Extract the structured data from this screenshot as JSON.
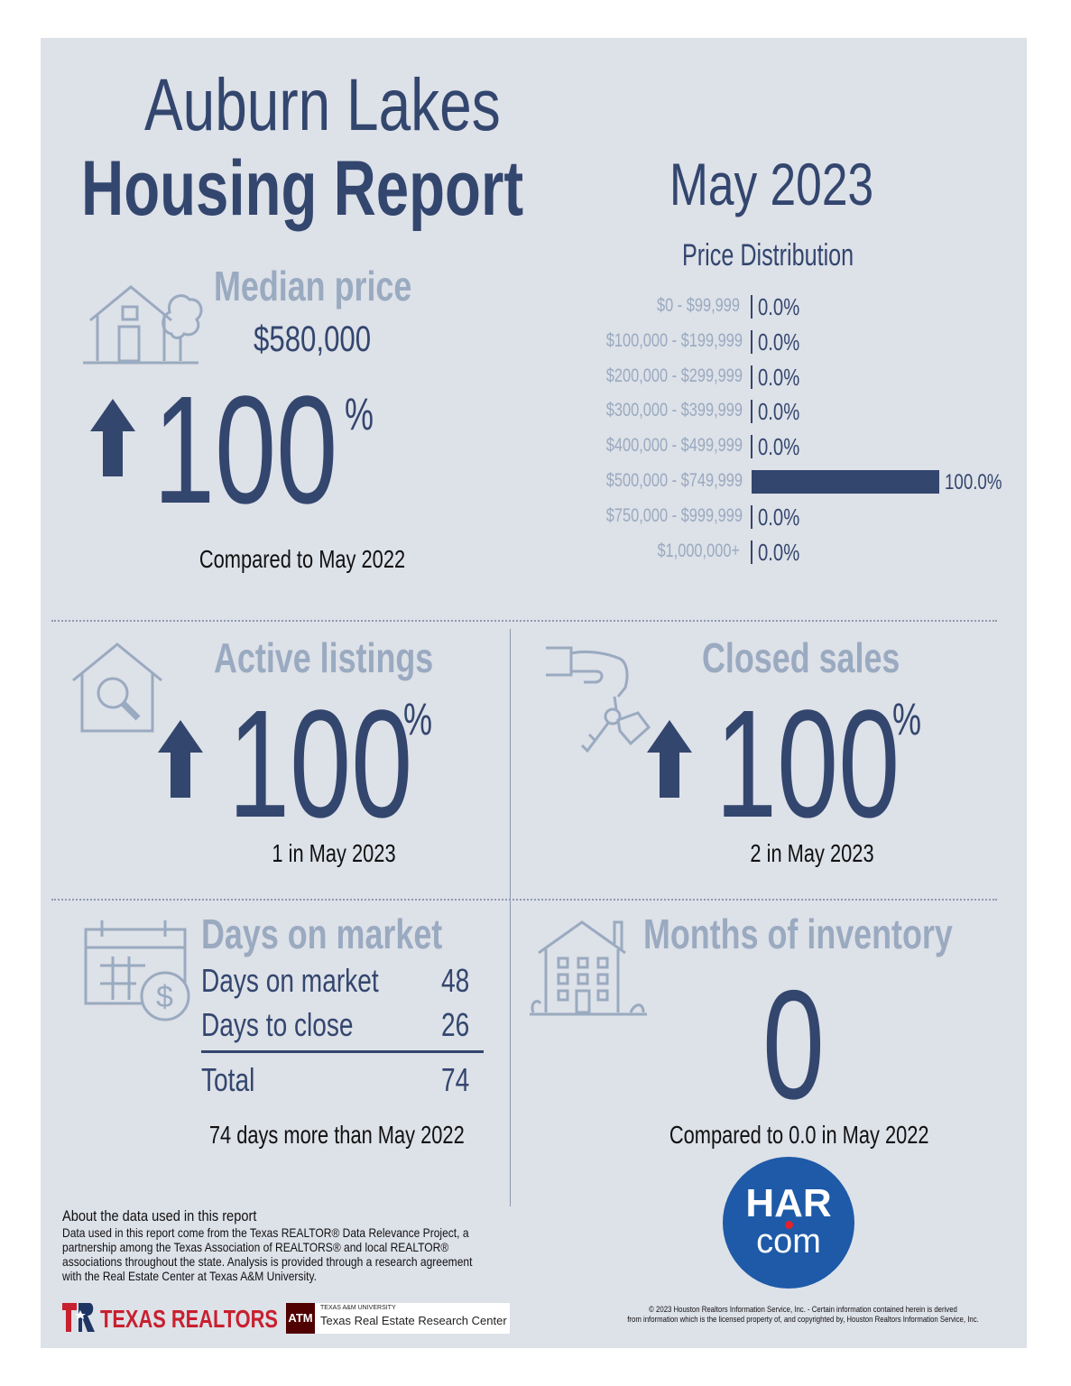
{
  "header": {
    "title_line1": "Auburn Lakes",
    "title_line2": "Housing Report",
    "period": "May 2023"
  },
  "price_distribution": {
    "heading": "Price Distribution"
  },
  "chart_data": {
    "type": "bar",
    "title": "Price Distribution",
    "categories": [
      "$0 - $99,999",
      "$100,000 - $199,999",
      "$200,000 - $299,999",
      "$300,000 - $399,999",
      "$400,000 - $499,999",
      "$500,000 - $749,999",
      "$750,000 - $999,999",
      "$1,000,000+"
    ],
    "values": [
      0.0,
      0.0,
      0.0,
      0.0,
      0.0,
      100.0,
      0.0,
      0.0
    ],
    "value_labels": [
      "0.0%",
      "0.0%",
      "0.0%",
      "0.0%",
      "0.0%",
      "100.0%",
      "0.0%",
      "0.0%"
    ],
    "orientation": "horizontal",
    "xlim": [
      0,
      100
    ]
  },
  "median_price": {
    "title": "Median price",
    "value": "$580,000",
    "change": "100",
    "unit": "%",
    "direction": "up",
    "comparison": "Compared to May 2022"
  },
  "active_listings": {
    "title": "Active listings",
    "change": "100",
    "unit": "%",
    "direction": "up",
    "caption": "1 in May 2023"
  },
  "closed_sales": {
    "title": "Closed sales",
    "change": "100",
    "unit": "%",
    "direction": "up",
    "caption": "2 in May 2023"
  },
  "days_on_market": {
    "title": "Days on market",
    "rows": [
      {
        "label": "Days on market",
        "value": "48"
      },
      {
        "label": "Days to close",
        "value": "26"
      }
    ],
    "total_label": "Total",
    "total_value": "74",
    "caption": "74 days more than May 2022"
  },
  "months_inventory": {
    "title": "Months of inventory",
    "value": "0",
    "caption": "Compared to 0.0 in May 2022"
  },
  "about": {
    "heading": "About the data used in this report",
    "body": "Data used in this report come from the Texas REALTOR® Data Relevance Project, a partnership among the Texas Association of REALTORS® and local REALTOR® associations throughout the state. Analysis is provided through a research agreement with the Real Estate Center at Texas A&M University."
  },
  "logos": {
    "texas_realtors": "TEXAS REALTORS",
    "tamu_small": "TEXAS A&M UNIVERSITY",
    "tamu_center": "Texas Real Estate Research Center",
    "tamu_mark": "ATM",
    "har_line1": "HAR",
    "har_line2": "com"
  },
  "copyright": {
    "line1": "© 2023 Houston Realtors Information Service, Inc. - Certain information contained herein is derived",
    "line2": "from information which is the licensed property of, and copyrighted by, Houston Realtors Information Service, Inc."
  },
  "colors": {
    "navy": "#33466e",
    "pale": "#9aaac0",
    "background": "#dde1e8",
    "har_blue": "#1e5aa8",
    "har_red": "#e2222a",
    "texas_red": "#c8202f"
  }
}
